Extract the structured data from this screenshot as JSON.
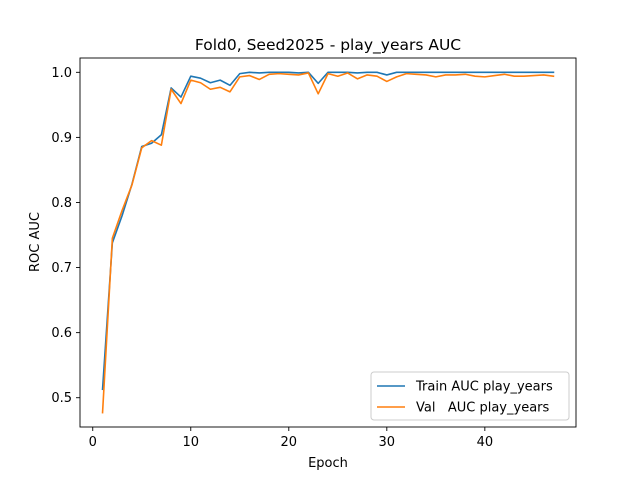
{
  "chart_data": {
    "type": "line",
    "title": "Fold0, Seed2025 - play_years AUC",
    "xlabel": "Epoch",
    "ylabel": "ROC AUC",
    "xlim": [
      -1.3,
      49.3
    ],
    "ylim": [
      0.455,
      1.022
    ],
    "xticks": [
      0,
      10,
      20,
      30,
      40
    ],
    "yticks": [
      0.5,
      0.6,
      0.7,
      0.8,
      0.9,
      1.0
    ],
    "ytick_labels": [
      "0.5",
      "0.6",
      "0.7",
      "0.8",
      "0.9",
      "1.0"
    ],
    "grid": false,
    "legend_position": "lower right",
    "x": [
      1,
      2,
      3,
      4,
      5,
      6,
      7,
      8,
      9,
      10,
      11,
      12,
      13,
      14,
      15,
      16,
      17,
      18,
      19,
      20,
      21,
      22,
      23,
      24,
      25,
      26,
      27,
      28,
      29,
      30,
      31,
      32,
      33,
      34,
      35,
      36,
      37,
      38,
      39,
      40,
      41,
      42,
      43,
      44,
      45,
      46,
      47
    ],
    "series": [
      {
        "name": "Train AUC play_years",
        "color": "#1f77b4",
        "values": [
          0.513,
          0.738,
          0.78,
          0.828,
          0.886,
          0.891,
          0.904,
          0.976,
          0.962,
          0.994,
          0.991,
          0.984,
          0.988,
          0.98,
          0.998,
          1.0,
          0.999,
          1.0,
          1.0,
          1.0,
          0.999,
          1.0,
          0.983,
          1.0,
          1.0,
          1.0,
          0.999,
          1.0,
          1.0,
          0.996,
          1.0,
          1.0,
          1.0,
          1.0,
          1.0,
          1.0,
          1.0,
          1.0,
          1.0,
          1.0,
          1.0,
          1.0,
          1.0,
          1.0,
          1.0,
          1.0,
          1.0
        ]
      },
      {
        "name": "Val   AUC play_years",
        "color": "#ff7f0e",
        "values": [
          0.477,
          0.745,
          0.788,
          0.827,
          0.884,
          0.895,
          0.888,
          0.974,
          0.952,
          0.988,
          0.984,
          0.974,
          0.977,
          0.97,
          0.993,
          0.995,
          0.989,
          0.997,
          0.998,
          0.997,
          0.996,
          0.999,
          0.967,
          0.998,
          0.994,
          0.999,
          0.99,
          0.996,
          0.994,
          0.986,
          0.993,
          0.998,
          0.997,
          0.996,
          0.993,
          0.996,
          0.996,
          0.997,
          0.994,
          0.993,
          0.995,
          0.997,
          0.994,
          0.994,
          0.995,
          0.996,
          0.994
        ]
      }
    ]
  }
}
